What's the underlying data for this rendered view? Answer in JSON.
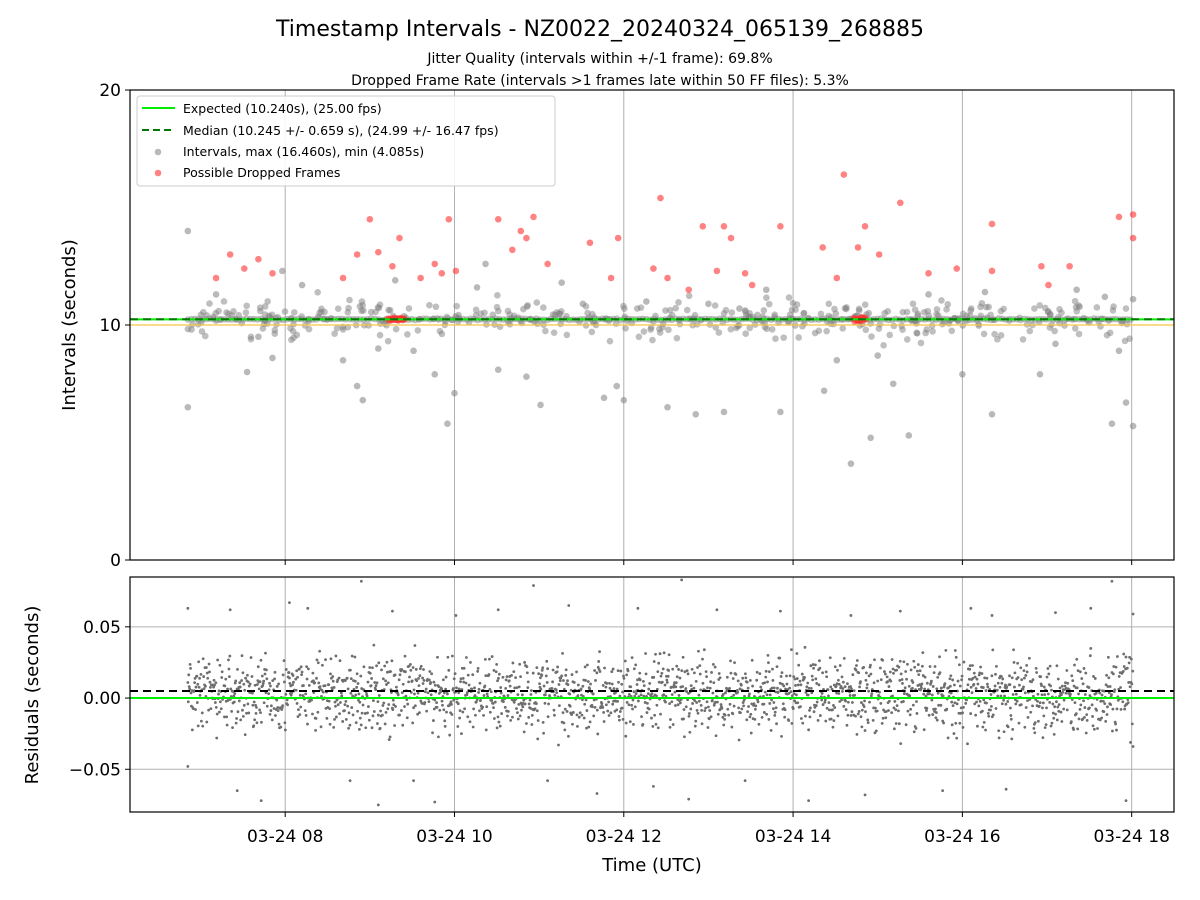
{
  "chart_data": [
    {
      "type": "scatter",
      "title": "Timestamp Intervals - NZ0022_20240324_065139_268885",
      "subtitles": [
        "Jitter Quality (intervals within +/-1 frame): 69.8%",
        "Dropped Frame Rate (intervals >1 frames late within 50 FF files): 5.3%"
      ],
      "xlabel": "",
      "ylabel": "Intervals (seconds)",
      "x_range": [
        "03-24 06:10",
        "03-24 18:30"
      ],
      "x_ticks": [
        "03-24 08",
        "03-24 10",
        "03-24 12",
        "03-24 14",
        "03-24 16",
        "03-24 18"
      ],
      "ylim": [
        0,
        20
      ],
      "y_ticks": [
        0,
        10,
        20
      ],
      "grid": "vertical",
      "legend_position": "top-left",
      "series": [
        {
          "name": "Expected (10.240s), (25.00 fps)",
          "kind": "hline",
          "y": 10.24,
          "color": "#00ee00",
          "style": "solid"
        },
        {
          "name": "Median (10.245 +/- 0.659 s), (24.99 +/- 16.47 fps)",
          "kind": "hline",
          "y": 10.245,
          "color": "#007700",
          "style": "dashed"
        },
        {
          "name": "Intervals, max (16.460s), min (4.085s)",
          "kind": "scatter",
          "color": "#808080",
          "points": [
            [
              "06:51",
              14.0
            ],
            [
              "06:51",
              6.5
            ],
            [
              "07:11",
              11.3
            ],
            [
              "07:33",
              8.0
            ],
            [
              "07:41",
              9.5
            ],
            [
              "07:51",
              8.6
            ],
            [
              "07:58",
              12.3
            ],
            [
              "08:12",
              11.7
            ],
            [
              "08:41",
              8.5
            ],
            [
              "08:51",
              7.4
            ],
            [
              "08:55",
              6.8
            ],
            [
              "09:06",
              9.0
            ],
            [
              "09:18",
              11.9
            ],
            [
              "09:31",
              8.9
            ],
            [
              "09:46",
              7.9
            ],
            [
              "09:55",
              5.8
            ],
            [
              "10:00",
              7.1
            ],
            [
              "10:16",
              11.6
            ],
            [
              "10:22",
              12.6
            ],
            [
              "10:31",
              8.1
            ],
            [
              "10:51",
              7.8
            ],
            [
              "11:01",
              6.6
            ],
            [
              "11:16",
              11.8
            ],
            [
              "11:31",
              10.9
            ],
            [
              "11:46",
              6.9
            ],
            [
              "11:55",
              7.4
            ],
            [
              "12:00",
              6.8
            ],
            [
              "12:16",
              11.0
            ],
            [
              "12:31",
              6.5
            ],
            [
              "12:51",
              6.2
            ],
            [
              "13:00",
              10.9
            ],
            [
              "13:11",
              6.3
            ],
            [
              "13:22",
              10.7
            ],
            [
              "13:41",
              11.5
            ],
            [
              "13:51",
              6.3
            ],
            [
              "14:22",
              7.2
            ],
            [
              "14:31",
              8.5
            ],
            [
              "14:41",
              4.1
            ],
            [
              "14:55",
              5.2
            ],
            [
              "15:00",
              8.7
            ],
            [
              "15:11",
              7.5
            ],
            [
              "15:22",
              5.3
            ],
            [
              "15:36",
              11.3
            ],
            [
              "15:51",
              10.2
            ],
            [
              "16:00",
              7.9
            ],
            [
              "16:16",
              11.4
            ],
            [
              "16:21",
              6.2
            ],
            [
              "16:55",
              7.9
            ],
            [
              "17:06",
              9.2
            ],
            [
              "17:21",
              11.5
            ],
            [
              "17:41",
              11.2
            ],
            [
              "17:46",
              5.8
            ],
            [
              "17:51",
              8.9
            ],
            [
              "17:56",
              6.7
            ],
            [
              "18:01",
              5.7
            ],
            [
              "18:01",
              11.1
            ]
          ]
        },
        {
          "name": "Possible Dropped Frames",
          "kind": "scatter",
          "color": "#ff3030",
          "points": [
            [
              "07:11",
              12.0
            ],
            [
              "07:21",
              13.0
            ],
            [
              "07:31",
              12.4
            ],
            [
              "07:41",
              12.8
            ],
            [
              "07:51",
              12.2
            ],
            [
              "08:41",
              12.0
            ],
            [
              "08:51",
              13.0
            ],
            [
              "09:00",
              14.5
            ],
            [
              "09:06",
              13.1
            ],
            [
              "09:16",
              12.5
            ],
            [
              "09:21",
              13.7
            ],
            [
              "09:36",
              12.0
            ],
            [
              "09:46",
              12.6
            ],
            [
              "09:51",
              12.2
            ],
            [
              "09:56",
              14.5
            ],
            [
              "10:01",
              12.3
            ],
            [
              "10:31",
              14.5
            ],
            [
              "10:41",
              13.2
            ],
            [
              "10:47",
              14.0
            ],
            [
              "10:51",
              13.7
            ],
            [
              "10:56",
              14.6
            ],
            [
              "11:06",
              12.6
            ],
            [
              "11:36",
              13.5
            ],
            [
              "11:51",
              12.0
            ],
            [
              "11:56",
              13.7
            ],
            [
              "12:21",
              12.4
            ],
            [
              "12:26",
              15.4
            ],
            [
              "12:31",
              12.0
            ],
            [
              "12:46",
              11.5
            ],
            [
              "12:56",
              14.2
            ],
            [
              "13:06",
              12.3
            ],
            [
              "13:11",
              14.2
            ],
            [
              "13:16",
              13.7
            ],
            [
              "13:26",
              12.2
            ],
            [
              "13:31",
              11.7
            ],
            [
              "13:51",
              14.2
            ],
            [
              "14:21",
              13.3
            ],
            [
              "14:31",
              12.0
            ],
            [
              "14:36",
              16.4
            ],
            [
              "14:46",
              13.3
            ],
            [
              "14:51",
              14.2
            ],
            [
              "15:01",
              13.0
            ],
            [
              "15:16",
              15.2
            ],
            [
              "15:36",
              12.2
            ],
            [
              "15:56",
              12.4
            ],
            [
              "16:21",
              14.3
            ],
            [
              "16:21",
              12.3
            ],
            [
              "16:56",
              12.5
            ],
            [
              "17:01",
              11.7
            ],
            [
              "17:16",
              12.5
            ],
            [
              "17:51",
              14.6
            ],
            [
              "18:01",
              14.7
            ],
            [
              "18:01",
              13.7
            ]
          ]
        }
      ]
    },
    {
      "type": "scatter",
      "title": "",
      "xlabel": "Time (UTC)",
      "ylabel": "Residuals (seconds)",
      "x_range": [
        "03-24 06:10",
        "03-24 18:30"
      ],
      "x_ticks": [
        "03-24 08",
        "03-24 10",
        "03-24 12",
        "03-24 14",
        "03-24 16",
        "03-24 18"
      ],
      "ylim": [
        -0.08,
        0.085
      ],
      "y_ticks": [
        "0.05",
        "0.00",
        "−0.05"
      ],
      "grid": "both",
      "series": [
        {
          "kind": "hline",
          "y": 0.0,
          "color": "#00ee00",
          "style": "solid"
        },
        {
          "kind": "hline",
          "y": 0.005,
          "color": "#000000",
          "style": "dashed"
        },
        {
          "kind": "scatter",
          "color": "#6e6e6e",
          "points": [
            [
              "06:51",
              0.063
            ],
            [
              "06:51",
              -0.048
            ],
            [
              "07:21",
              0.062
            ],
            [
              "07:26",
              -0.065
            ],
            [
              "07:43",
              -0.072
            ],
            [
              "08:03",
              0.067
            ],
            [
              "08:16",
              0.063
            ],
            [
              "08:46",
              -0.058
            ],
            [
              "08:54",
              0.082
            ],
            [
              "09:06",
              -0.075
            ],
            [
              "09:16",
              0.061
            ],
            [
              "09:31",
              -0.058
            ],
            [
              "09:46",
              -0.073
            ],
            [
              "10:01",
              0.058
            ],
            [
              "10:31",
              0.062
            ],
            [
              "10:56",
              0.079
            ],
            [
              "11:06",
              -0.058
            ],
            [
              "11:21",
              0.065
            ],
            [
              "11:41",
              -0.067
            ],
            [
              "12:10",
              0.063
            ],
            [
              "12:21",
              -0.062
            ],
            [
              "12:41",
              0.083
            ],
            [
              "12:46",
              -0.071
            ],
            [
              "13:06",
              0.062
            ],
            [
              "13:26",
              -0.058
            ],
            [
              "13:51",
              0.061
            ],
            [
              "14:11",
              -0.072
            ],
            [
              "14:41",
              0.058
            ],
            [
              "14:51",
              -0.068
            ],
            [
              "15:16",
              0.061
            ],
            [
              "15:46",
              -0.065
            ],
            [
              "16:06",
              0.063
            ],
            [
              "16:21",
              0.058
            ],
            [
              "16:31",
              -0.064
            ],
            [
              "17:06",
              0.06
            ],
            [
              "17:31",
              0.063
            ],
            [
              "17:46",
              0.082
            ],
            [
              "17:56",
              -0.072
            ],
            [
              "18:01",
              0.059
            ],
            [
              "18:01",
              -0.034
            ]
          ]
        }
      ]
    }
  ],
  "legend": [
    {
      "label": "Expected (10.240s), (25.00 fps)",
      "marker": "line",
      "color": "#00ee00"
    },
    {
      "label": "Median (10.245 +/- 0.659 s), (24.99 +/- 16.47 fps)",
      "marker": "dashed",
      "color": "#007700"
    },
    {
      "label": "Intervals, max (16.460s), min (4.085s)",
      "marker": "dot",
      "color": "#808080"
    },
    {
      "label": "Possible Dropped Frames",
      "marker": "dot",
      "color": "#ff3030"
    }
  ]
}
